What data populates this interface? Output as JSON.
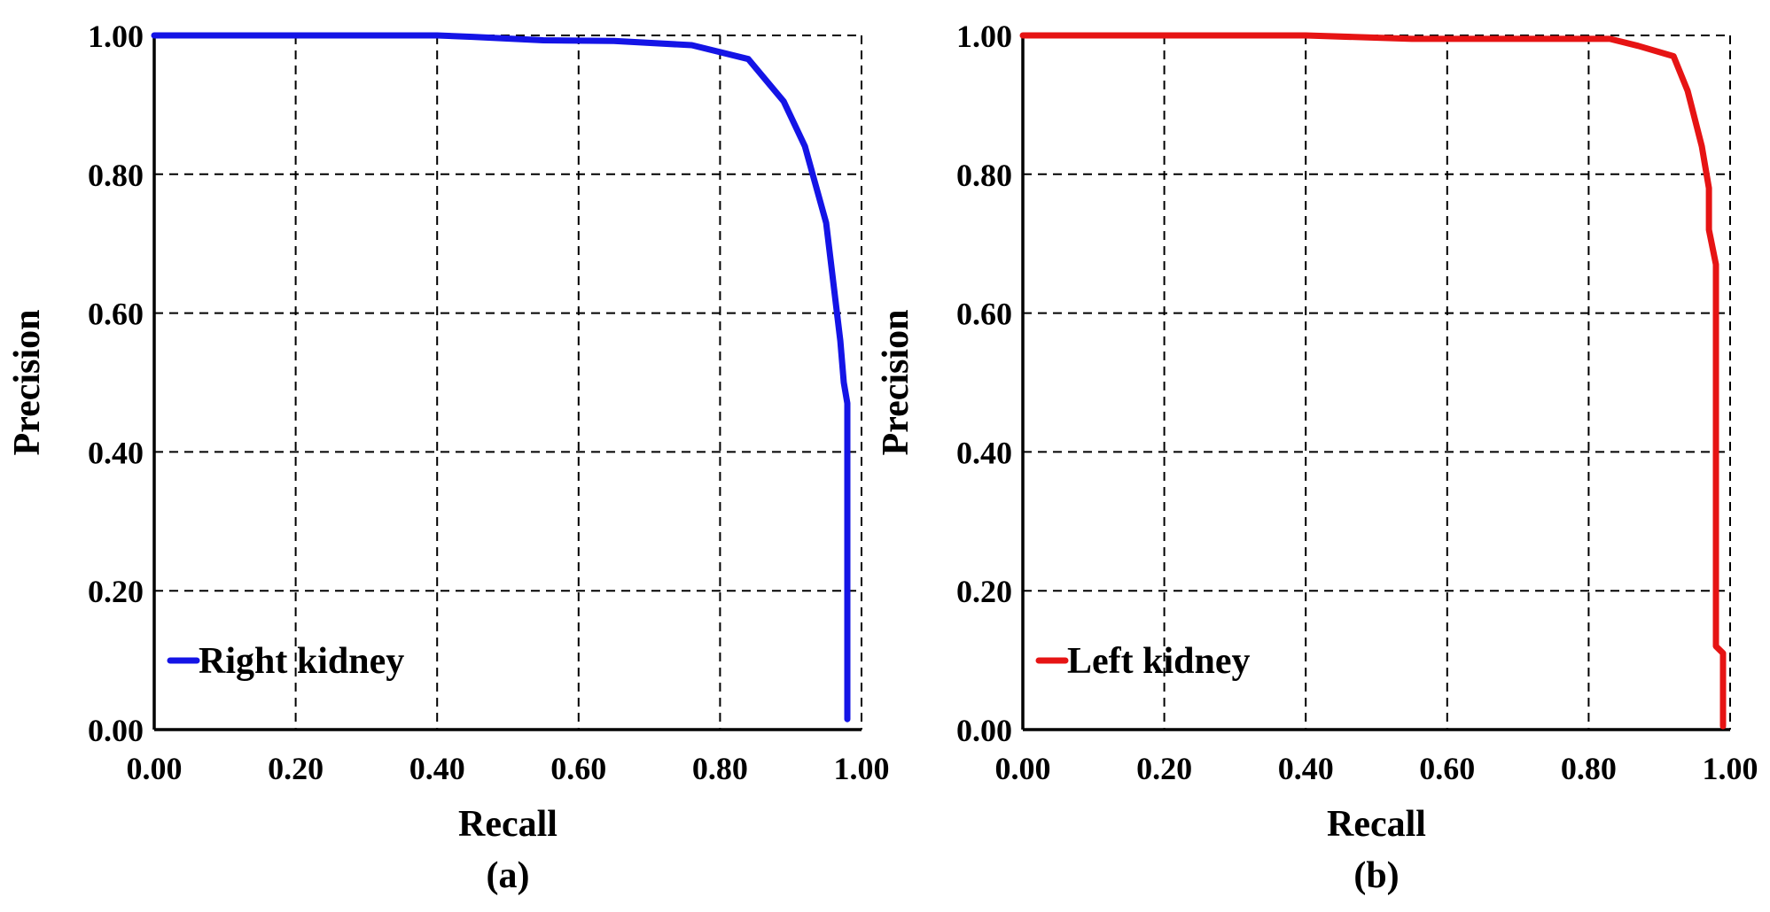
{
  "chart_data": [
    {
      "type": "line",
      "caption": "(a)",
      "xlabel": "Recall",
      "ylabel": "Precision",
      "xlim": [
        0,
        1
      ],
      "ylim": [
        0,
        1
      ],
      "x_ticks": [
        "0.00",
        "0.20",
        "0.40",
        "0.60",
        "0.80",
        "1.00"
      ],
      "y_ticks": [
        "0.00",
        "0.20",
        "0.40",
        "0.60",
        "0.80",
        "1.00"
      ],
      "grid": true,
      "legend_position": "bottom-left",
      "series": [
        {
          "name": "Right kidney",
          "color": "#1414e6",
          "x": [
            0.0,
            0.1,
            0.2,
            0.3,
            0.4,
            0.45,
            0.55,
            0.65,
            0.76,
            0.84,
            0.89,
            0.92,
            0.95,
            0.97,
            0.975,
            0.98,
            0.98,
            0.98
          ],
          "y": [
            1.0,
            1.0,
            1.0,
            1.0,
            1.0,
            0.998,
            0.993,
            0.992,
            0.986,
            0.966,
            0.905,
            0.84,
            0.73,
            0.56,
            0.5,
            0.47,
            0.2,
            0.015
          ]
        }
      ]
    },
    {
      "type": "line",
      "caption": "(b)",
      "xlabel": "Recall",
      "ylabel": "Precision",
      "xlim": [
        0,
        1
      ],
      "ylim": [
        0,
        1
      ],
      "x_ticks": [
        "0.00",
        "0.20",
        "0.40",
        "0.60",
        "0.80",
        "1.00"
      ],
      "y_ticks": [
        "0.00",
        "0.20",
        "0.40",
        "0.60",
        "0.80",
        "1.00"
      ],
      "grid": true,
      "legend_position": "bottom-left",
      "series": [
        {
          "name": "Left kidney",
          "color": "#e61414",
          "x": [
            0.0,
            0.2,
            0.4,
            0.55,
            0.7,
            0.8,
            0.83,
            0.87,
            0.92,
            0.94,
            0.96,
            0.97,
            0.97,
            0.98,
            0.98,
            0.98,
            0.99,
            0.99
          ],
          "y": [
            1.0,
            1.0,
            1.0,
            0.995,
            0.995,
            0.995,
            0.995,
            0.985,
            0.97,
            0.92,
            0.84,
            0.78,
            0.72,
            0.67,
            0.4,
            0.12,
            0.11,
            0.005
          ]
        }
      ]
    }
  ]
}
